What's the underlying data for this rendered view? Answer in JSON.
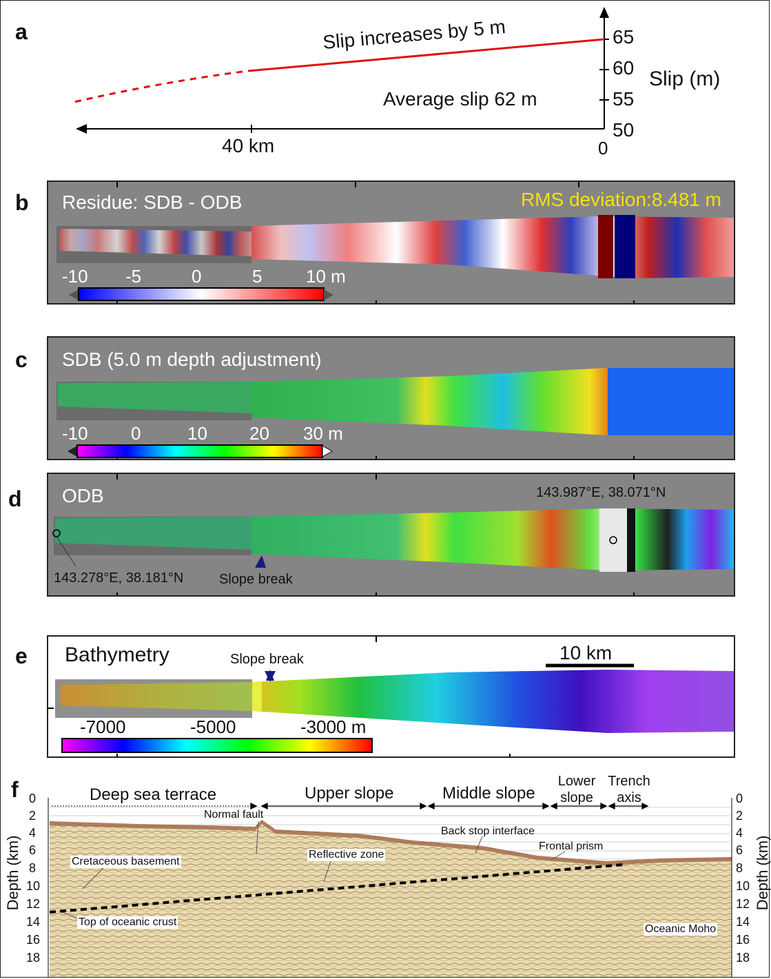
{
  "panels": {
    "a": {
      "label": "a",
      "annotation_top": "Slip increases by 5 m",
      "annotation_avg": "Average slip 62 m",
      "x_tick_40": "40 km",
      "x_tick_0": "0",
      "y_ticks": [
        "65",
        "60",
        "55",
        "50"
      ],
      "y_axis_label": "Slip (m)"
    },
    "b": {
      "label": "b",
      "title": "Residue: SDB - ODB",
      "rms": "RMS deviation:8.481 m",
      "colorbar_ticks": [
        "-10",
        "-5",
        "0",
        "5",
        "10 m"
      ],
      "colorbar_colors": [
        "#0000ff",
        "#ffffff",
        "#ff0000"
      ]
    },
    "c": {
      "label": "c",
      "title": "SDB (5.0 m depth adjustment)",
      "colorbar_ticks": [
        "-10",
        "0",
        "10",
        "20",
        "30 m"
      ],
      "colorbar_colors": [
        "#ff00ff",
        "#0000ff",
        "#00ffff",
        "#00ff00",
        "#ffff00",
        "#ff0000"
      ]
    },
    "d": {
      "label": "d",
      "title": "ODB",
      "coord_right": "143.987°E, 38.071°N",
      "coord_left": "143.278°E, 38.181°N",
      "slope_break": "Slope break"
    },
    "e": {
      "label": "e",
      "title": "Bathymetry",
      "slope_break": "Slope break",
      "scale_bar": "10 km",
      "colorbar_ticks": [
        "-7000",
        "-5000",
        "-3000 m"
      ],
      "colorbar_colors": [
        "#ff00ff",
        "#0000ff",
        "#00ffff",
        "#00ff00",
        "#ffff00",
        "#ff0000"
      ]
    },
    "f": {
      "label": "f",
      "zones": [
        "Deep sea terrace",
        "Upper slope",
        "Middle slope",
        "Lower slope",
        "Trench axis"
      ],
      "annotations": {
        "normal_fault": "Normal fault",
        "back_stop": "Back stop interface",
        "frontal_prism": "Frontal prism",
        "cretaceous": "Cretaceous basement",
        "reflective": "Reflective zone",
        "oceanic_crust": "Top of oceanic crust",
        "moho": "Oceanic Moho"
      },
      "depth_ticks": [
        "0",
        "2",
        "4",
        "6",
        "8",
        "10",
        "12",
        "14",
        "16",
        "18"
      ],
      "depth_label": "Depth (km)"
    }
  },
  "colors": {
    "slip_line": "#e01010",
    "panel_bg": "#858585",
    "rms_text": "#f2e20a"
  }
}
